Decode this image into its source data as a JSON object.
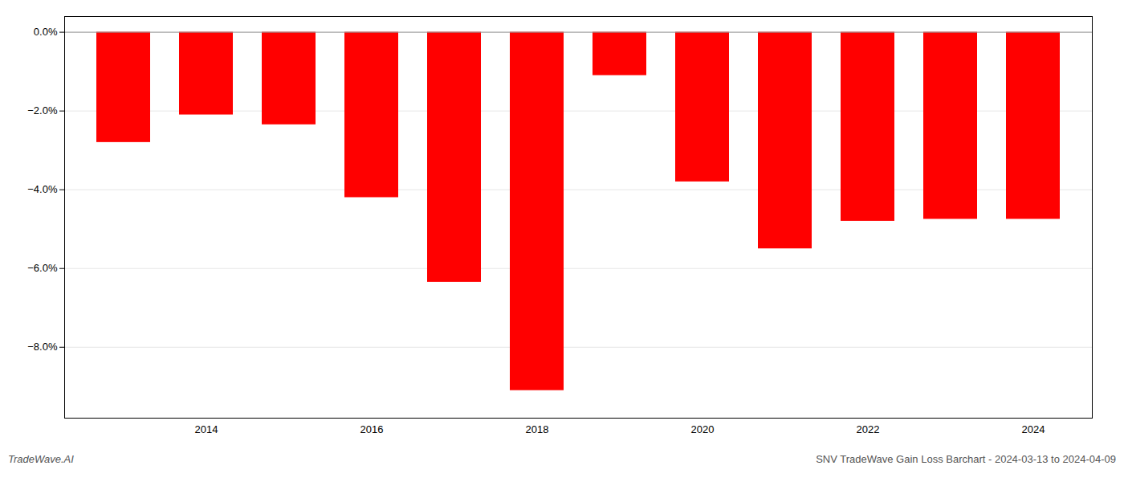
{
  "chart_data": {
    "type": "bar",
    "categories": [
      null,
      "2014",
      null,
      "2016",
      null,
      "2018",
      null,
      "2020",
      null,
      "2022",
      null,
      "2024"
    ],
    "values": [
      -2.8,
      -2.1,
      -2.35,
      -4.2,
      -6.35,
      -9.1,
      -1.1,
      -3.8,
      -5.5,
      -4.8,
      -4.75,
      -4.75
    ],
    "color": "#ff0000",
    "ylim": [
      -9.8,
      0.4
    ],
    "yticks": [
      {
        "value": 0.0,
        "label": "0.0%"
      },
      {
        "value": -2.0,
        "label": "−2.0%"
      },
      {
        "value": -4.0,
        "label": "−4.0%"
      },
      {
        "value": -6.0,
        "label": "−6.0%"
      },
      {
        "value": -8.0,
        "label": "−8.0%"
      }
    ],
    "grid": true,
    "annotations": [
      "TradeWave.AI",
      "SNV TradeWave Gain Loss Barchart - 2024-03-13 to 2024-04-09"
    ]
  }
}
